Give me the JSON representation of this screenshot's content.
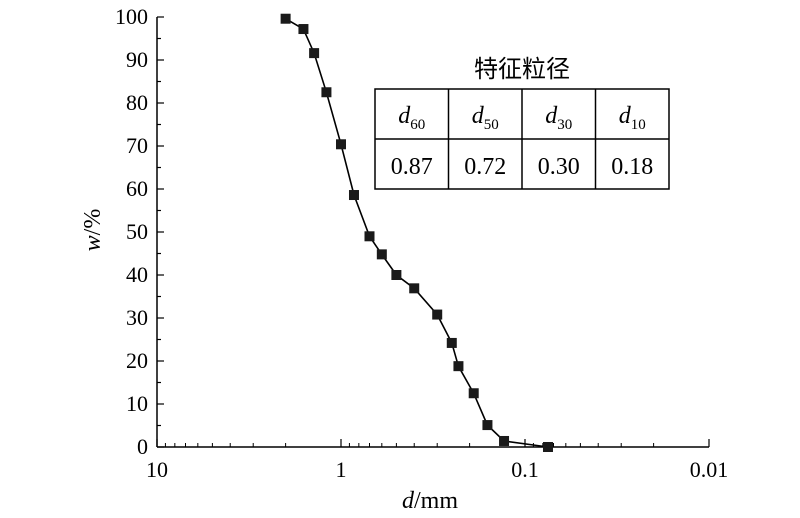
{
  "chart_data": {
    "type": "line",
    "xlabel": {
      "var": "d",
      "unit": "/mm"
    },
    "ylabel": {
      "var": "w",
      "unit": "/%"
    },
    "x_scale": "log",
    "x_reversed": true,
    "xlim": [
      10,
      0.01
    ],
    "ylim": [
      0,
      100
    ],
    "x_ticks": [
      {
        "value": 10,
        "label": "10"
      },
      {
        "value": 1,
        "label": "1"
      },
      {
        "value": 0.1,
        "label": "0.1"
      },
      {
        "value": 0.01,
        "label": "0.01"
      }
    ],
    "y_ticks": [
      {
        "value": 0,
        "label": "0"
      },
      {
        "value": 10,
        "label": "10"
      },
      {
        "value": 20,
        "label": "20"
      },
      {
        "value": 30,
        "label": "30"
      },
      {
        "value": 40,
        "label": "40"
      },
      {
        "value": 50,
        "label": "50"
      },
      {
        "value": 60,
        "label": "60"
      },
      {
        "value": 70,
        "label": "70"
      },
      {
        "value": 80,
        "label": "80"
      },
      {
        "value": 90,
        "label": "90"
      },
      {
        "value": 100,
        "label": "100"
      }
    ],
    "grid": false,
    "marker": "square",
    "line_color": "#000000",
    "marker_color": "#1a1a1a",
    "series": [
      {
        "x": [
          2.0,
          1.6,
          1.4,
          1.2,
          1.0,
          0.85,
          0.7,
          0.6,
          0.5,
          0.4,
          0.3,
          0.25,
          0.23,
          0.19,
          0.16,
          0.13,
          0.075
        ],
        "y": [
          99.6,
          97.2,
          91.6,
          82.5,
          70.4,
          58.6,
          49.0,
          44.8,
          40.0,
          36.9,
          30.8,
          24.2,
          18.8,
          12.5,
          5.1,
          1.4,
          0.0
        ]
      }
    ],
    "inset_table": {
      "title": "特征粒径",
      "headers": [
        {
          "base": "d",
          "sub": "60"
        },
        {
          "base": "d",
          "sub": "50"
        },
        {
          "base": "d",
          "sub": "30"
        },
        {
          "base": "d",
          "sub": "10"
        }
      ],
      "values": [
        "0.87",
        "0.72",
        "0.30",
        "0.18"
      ]
    }
  }
}
